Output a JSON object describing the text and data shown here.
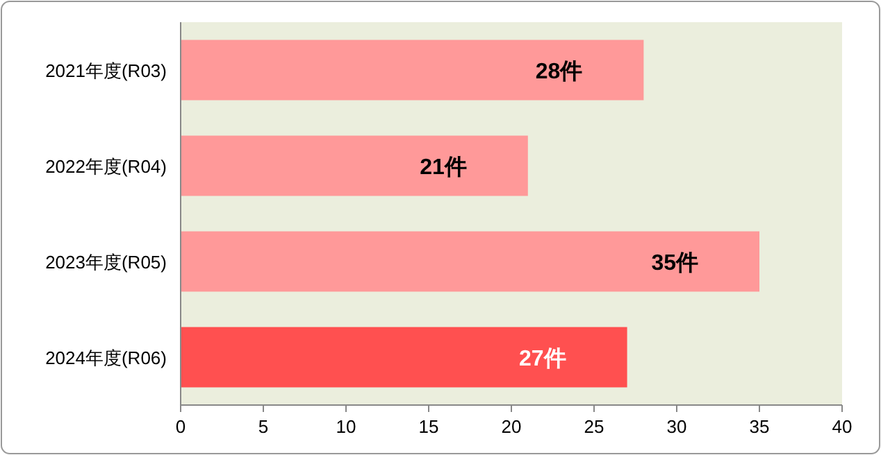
{
  "chart_data": {
    "type": "bar",
    "orientation": "horizontal",
    "categories": [
      "2021年度(R03)",
      "2022年度(R04)",
      "2023年度(R05)",
      "2024年度(R06)"
    ],
    "values": [
      28,
      21,
      35,
      27
    ],
    "colors": [
      "#ff9999",
      "#ff9999",
      "#ff9999",
      "#ff5050"
    ],
    "value_labels": [
      "28件",
      "21件",
      "35件",
      "27件"
    ],
    "xlim": [
      0,
      40
    ],
    "xticks": [
      0,
      5,
      10,
      15,
      20,
      25,
      30,
      35,
      40
    ]
  }
}
